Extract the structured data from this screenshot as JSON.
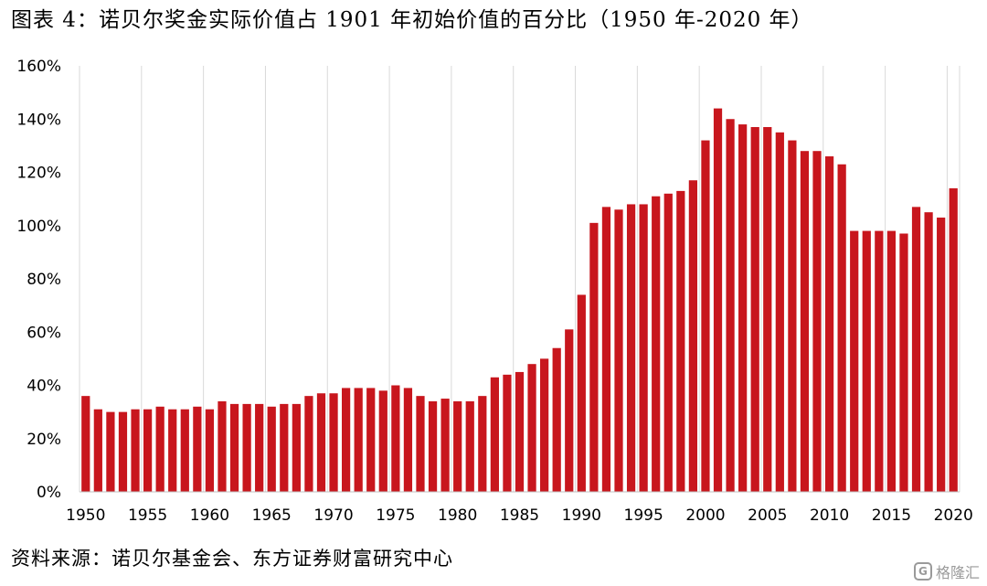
{
  "title": "图表 4：诺贝尔奖金实际价值占 1901 年初始价值的百分比（1950 年-2020 年）",
  "source": "资料来源：诺贝尔基金会、东方证券财富研究中心",
  "watermark": {
    "icon": "G",
    "text": "格隆汇"
  },
  "colors": {
    "bar": "#c8161d",
    "grid": "#d9d9d9"
  },
  "chart_data": {
    "type": "bar",
    "x": [
      1950,
      1951,
      1952,
      1953,
      1954,
      1955,
      1956,
      1957,
      1958,
      1959,
      1960,
      1961,
      1962,
      1963,
      1964,
      1965,
      1966,
      1967,
      1968,
      1969,
      1970,
      1971,
      1972,
      1973,
      1974,
      1975,
      1976,
      1977,
      1978,
      1979,
      1980,
      1981,
      1982,
      1983,
      1984,
      1985,
      1986,
      1987,
      1988,
      1989,
      1990,
      1991,
      1992,
      1993,
      1994,
      1995,
      1996,
      1997,
      1998,
      1999,
      2000,
      2001,
      2002,
      2003,
      2004,
      2005,
      2006,
      2007,
      2008,
      2009,
      2010,
      2011,
      2012,
      2013,
      2014,
      2015,
      2016,
      2017,
      2018,
      2019,
      2020
    ],
    "values": [
      36,
      31,
      30,
      30,
      31,
      31,
      32,
      31,
      31,
      32,
      31,
      34,
      33,
      33,
      33,
      32,
      33,
      33,
      36,
      37,
      37,
      39,
      39,
      39,
      38,
      40,
      39,
      36,
      34,
      35,
      34,
      34,
      36,
      43,
      44,
      45,
      48,
      50,
      54,
      61,
      74,
      101,
      107,
      106,
      108,
      108,
      111,
      112,
      113,
      117,
      132,
      144,
      140,
      138,
      137,
      137,
      135,
      132,
      128,
      128,
      126,
      123,
      98,
      98,
      98,
      98,
      97,
      107,
      105,
      103,
      114
    ],
    "xticks": [
      "1950",
      "1955",
      "1960",
      "1965",
      "1970",
      "1975",
      "1980",
      "1985",
      "1990",
      "1995",
      "2000",
      "2005",
      "2010",
      "2015",
      "2020"
    ],
    "yticks": [
      "0%",
      "20%",
      "40%",
      "60%",
      "80%",
      "100%",
      "120%",
      "140%",
      "160%"
    ],
    "ylim": [
      0,
      160
    ],
    "unit": "%",
    "grid": "vertical",
    "legend": "none"
  }
}
